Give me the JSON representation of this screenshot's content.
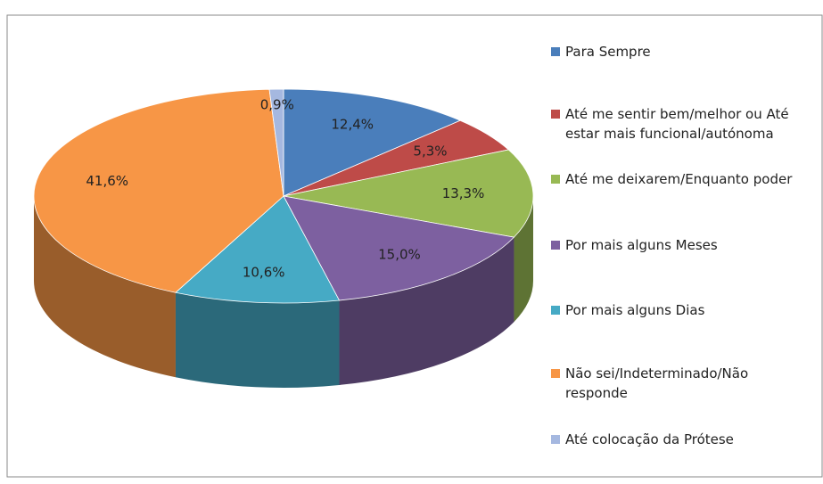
{
  "chart_data": {
    "type": "pie",
    "categories": [
      "Para Sempre",
      "Até me sentir bem/melhor ou Até estar mais funcional/autónoma",
      "Até me deixarem/Enquanto poder",
      "Por mais alguns Meses",
      "Por mais alguns Dias",
      "Não sei/Indeterminado/Não responde",
      "Até colocação da Prótese"
    ],
    "values": [
      12.4,
      5.3,
      13.3,
      15.0,
      10.6,
      41.6,
      0.9
    ],
    "value_labels": [
      "12,4%",
      "5,3%",
      "13,3%",
      "15,0%",
      "10,6%",
      "41,6%",
      "0,9%"
    ],
    "colors": [
      "#4a7ebb",
      "#be4b48",
      "#98b954",
      "#7d60a0",
      "#46aac5",
      "#f79646",
      "#a5b8e0"
    ],
    "legend": "right"
  }
}
